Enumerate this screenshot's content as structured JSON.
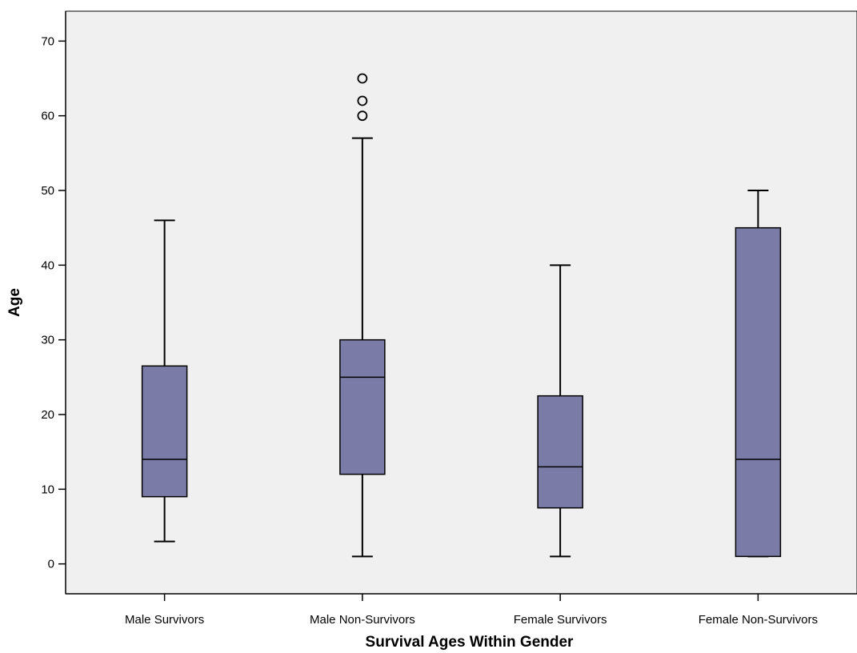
{
  "colors": {
    "plot_background": "#f0f0f0",
    "box_fill": "#7b7ba8",
    "stroke": "#000000"
  },
  "chart_data": {
    "type": "boxplot",
    "title": "",
    "xlabel": "Survival Ages Within Gender",
    "ylabel": "Age",
    "ylim": [
      -4,
      74
    ],
    "yticks": [
      0,
      10,
      20,
      30,
      40,
      50,
      60,
      70
    ],
    "grid": false,
    "categories": [
      "Male Survivors",
      "Male Non-Survivors",
      "Female Survivors",
      "Female Non-Survivors"
    ],
    "boxes": [
      {
        "category": "Male Survivors",
        "whisker_low": 3,
        "q1": 9,
        "median": 14,
        "q3": 26.5,
        "whisker_high": 46,
        "outliers": []
      },
      {
        "category": "Male Non-Survivors",
        "whisker_low": 1,
        "q1": 12,
        "median": 25,
        "q3": 30,
        "whisker_high": 57,
        "outliers": [
          60,
          62,
          65
        ]
      },
      {
        "category": "Female Survivors",
        "whisker_low": 1,
        "q1": 7.5,
        "median": 13,
        "q3": 22.5,
        "whisker_high": 40,
        "outliers": []
      },
      {
        "category": "Female Non-Survivors",
        "whisker_low": 1,
        "q1": 1,
        "median": 14,
        "q3": 45,
        "whisker_high": 50,
        "outliers": []
      }
    ]
  }
}
